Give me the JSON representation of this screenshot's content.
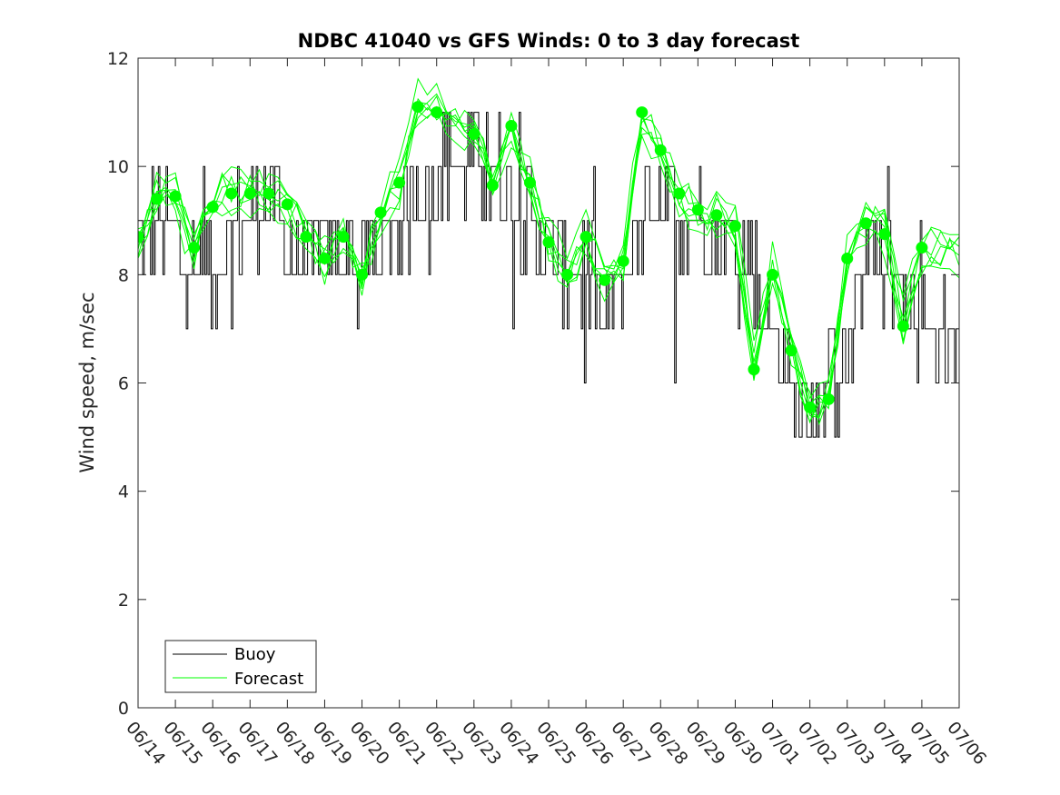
{
  "chart_data": {
    "type": "line",
    "title": "NDBC 41040 vs GFS Winds: 0 to 3 day forecast",
    "xlabel": "",
    "ylabel": "Wind speed, m/sec",
    "x_unit": "date",
    "x_ticks": [
      "06/14",
      "06/15",
      "06/16",
      "06/17",
      "06/18",
      "06/19",
      "06/20",
      "06/21",
      "06/22",
      "06/23",
      "06/24",
      "06/25",
      "06/26",
      "06/27",
      "06/28",
      "06/29",
      "06/30",
      "07/01",
      "07/02",
      "07/03",
      "07/04",
      "07/05",
      "07/06"
    ],
    "xlim": [
      "06/14",
      "07/06"
    ],
    "ylim": [
      0,
      12
    ],
    "y_ticks": [
      0,
      2,
      4,
      6,
      8,
      10,
      12
    ],
    "grid": false,
    "legend": {
      "position": "bottom-left",
      "entries": [
        "Buoy",
        "Forecast"
      ]
    },
    "colors": {
      "buoy": "#000000",
      "forecast": "#00ff00",
      "analysis_marker": "#00ff00"
    },
    "series": [
      {
        "name": "Buoy",
        "x_days_from_06_14": [
          0,
          0.5,
          1,
          1.5,
          2,
          2.5,
          3,
          3.5,
          4,
          4.5,
          5,
          5.5,
          6,
          6.5,
          7,
          7.5,
          8,
          8.5,
          9,
          9.5,
          10,
          10.5,
          11,
          11.5,
          12,
          12.5,
          13,
          13.5,
          14,
          14.5,
          15,
          15.5,
          16,
          16.5,
          17,
          17.5,
          18,
          18.5,
          19,
          19.5,
          20,
          20.5,
          21,
          21.5,
          22
        ],
        "values": [
          8.5,
          9,
          8.5,
          8,
          8,
          9,
          9,
          9.5,
          8.5,
          8.5,
          8.5,
          8.5,
          8,
          8.5,
          9,
          9.5,
          10,
          10,
          10,
          10,
          9.5,
          9,
          8.5,
          8,
          8,
          7,
          8,
          9,
          9.5,
          9,
          9,
          8.5,
          8.5,
          8,
          7,
          6,
          5.5,
          6,
          6.5,
          8.5,
          8,
          7.5,
          7,
          6.5,
          7
        ]
      },
      {
        "name": "Forecast",
        "analysis_points": {
          "dates": [
            "06/14 00Z",
            "06/14 12Z",
            "06/15 00Z",
            "06/15 12Z",
            "06/16 00Z",
            "06/16 12Z",
            "06/17 00Z",
            "06/17 12Z",
            "06/18 00Z",
            "06/18 12Z",
            "06/19 00Z",
            "06/19 12Z",
            "06/20 00Z",
            "06/20 12Z",
            "06/21 00Z",
            "06/21 12Z",
            "06/22 00Z",
            "06/23 00Z",
            "06/23 12Z",
            "06/24 00Z",
            "06/24 12Z",
            "06/25 00Z",
            "06/25 12Z",
            "06/26 00Z",
            "06/26 12Z",
            "06/27 00Z",
            "06/27 12Z",
            "06/28 00Z",
            "06/28 12Z",
            "06/29 00Z",
            "06/29 12Z",
            "06/30 00Z",
            "06/30 12Z",
            "07/01 00Z",
            "07/01 12Z",
            "07/02 00Z",
            "07/02 12Z",
            "07/03 00Z",
            "07/03 12Z",
            "07/04 00Z",
            "07/04 12Z",
            "07/05 00Z"
          ],
          "x_days_from_06_14": [
            0,
            0.5,
            1,
            1.5,
            2,
            2.5,
            3,
            3.5,
            4,
            4.5,
            5,
            5.5,
            6,
            6.5,
            7,
            7.5,
            8,
            9,
            9.5,
            10,
            10.5,
            11,
            11.5,
            12,
            12.5,
            13,
            13.5,
            14,
            14.5,
            15,
            15.5,
            16,
            16.5,
            17,
            17.5,
            18,
            18.5,
            19,
            19.5,
            20,
            20.5,
            21
          ],
          "values": [
            8.7,
            9.4,
            9.45,
            8.5,
            9.25,
            9.5,
            9.5,
            9.5,
            9.3,
            8.7,
            8.3,
            8.7,
            8.0,
            9.15,
            9.7,
            11.1,
            11.0,
            10.6,
            9.65,
            10.75,
            9.7,
            8.6,
            8.0,
            8.7,
            7.9,
            8.25,
            11.0,
            10.3,
            9.5,
            9.2,
            9.1,
            8.9,
            6.25,
            8.0,
            6.6,
            5.55,
            5.7,
            8.3,
            8.95,
            8.75,
            7.05,
            8.5
          ]
        }
      }
    ]
  }
}
